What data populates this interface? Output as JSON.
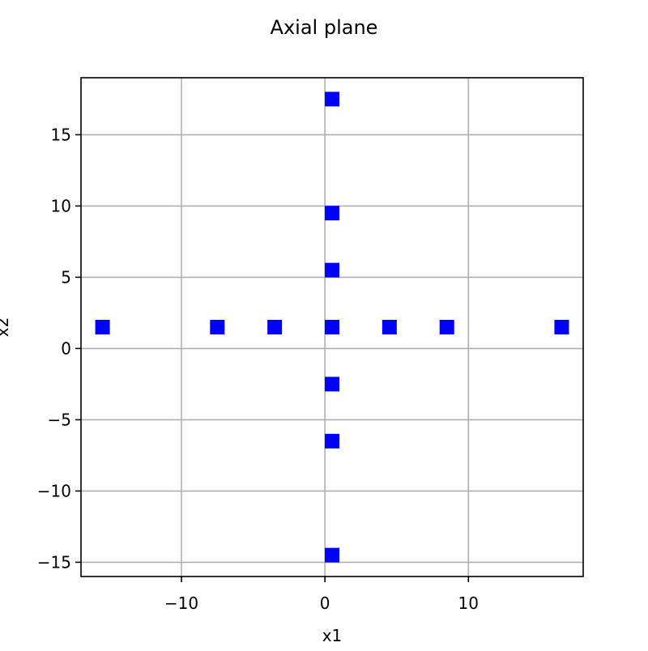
{
  "chart_data": {
    "type": "scatter",
    "title": "Axial plane",
    "xlabel": "x1",
    "ylabel": "x2",
    "xlim": [
      -17,
      18
    ],
    "ylim": [
      -16,
      19
    ],
    "x_ticks": [
      {
        "value": -10,
        "label": "−10"
      },
      {
        "value": 0,
        "label": "0"
      },
      {
        "value": 10,
        "label": "10"
      }
    ],
    "y_ticks": [
      {
        "value": -15,
        "label": "−15"
      },
      {
        "value": -10,
        "label": "−10"
      },
      {
        "value": -5,
        "label": "−5"
      },
      {
        "value": 0,
        "label": "0"
      },
      {
        "value": 5,
        "label": "5"
      },
      {
        "value": 10,
        "label": "10"
      },
      {
        "value": 15,
        "label": "15"
      }
    ],
    "grid": true,
    "series": [
      {
        "marker": "square",
        "color": "#0000ff",
        "points": [
          {
            "x": 0.5,
            "y": 17.5
          },
          {
            "x": 0.5,
            "y": 9.5
          },
          {
            "x": 0.5,
            "y": 5.5
          },
          {
            "x": -15.5,
            "y": 1.5
          },
          {
            "x": -7.5,
            "y": 1.5
          },
          {
            "x": -3.5,
            "y": 1.5
          },
          {
            "x": 0.5,
            "y": 1.5
          },
          {
            "x": 4.5,
            "y": 1.5
          },
          {
            "x": 8.5,
            "y": 1.5
          },
          {
            "x": 16.5,
            "y": 1.5
          },
          {
            "x": 0.5,
            "y": -2.5
          },
          {
            "x": 0.5,
            "y": -6.5
          },
          {
            "x": 0.5,
            "y": -14.5
          }
        ]
      }
    ]
  }
}
